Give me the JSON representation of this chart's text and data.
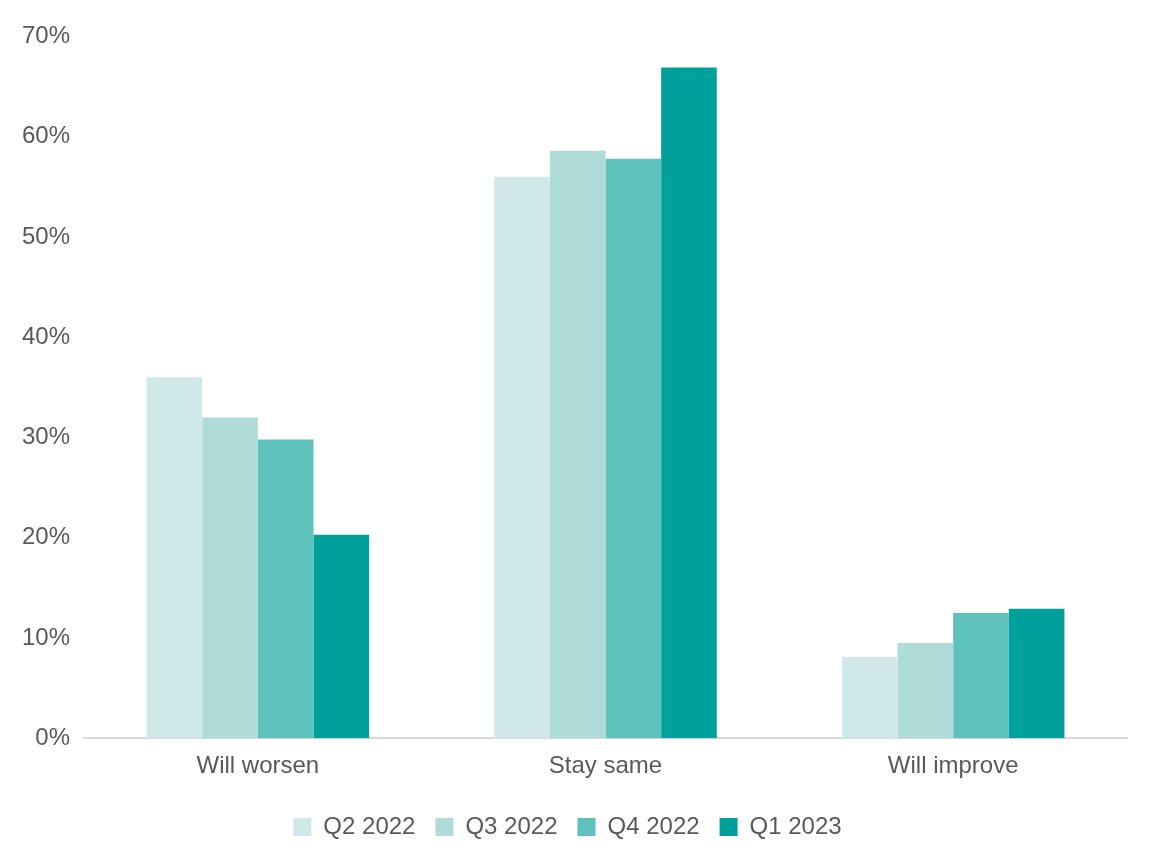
{
  "chart_data": {
    "type": "bar",
    "categories": [
      "Will worsen",
      "Stay same",
      "Will improve"
    ],
    "series": [
      {
        "name": "Q2 2022",
        "color": "#d0e9e8",
        "values": [
          36,
          56,
          8.1
        ]
      },
      {
        "name": "Q3 2022",
        "color": "#afdcd9",
        "values": [
          32,
          58.6,
          9.5
        ]
      },
      {
        "name": "Q4 2022",
        "color": "#5fc1bb",
        "values": [
          29.8,
          57.8,
          12.5
        ]
      },
      {
        "name": "Q1 2023",
        "color": "#00a19a",
        "values": [
          20.3,
          66.9,
          12.9
        ]
      }
    ],
    "ylim": [
      0,
      70
    ],
    "yticks": [
      {
        "value": 0,
        "label": "0%"
      },
      {
        "value": 10,
        "label": "10%"
      },
      {
        "value": 20,
        "label": "20%"
      },
      {
        "value": 30,
        "label": "30%"
      },
      {
        "value": 40,
        "label": "40%"
      },
      {
        "value": 50,
        "label": "50%"
      },
      {
        "value": 60,
        "label": "60%"
      },
      {
        "value": 70,
        "label": "70%"
      }
    ],
    "grid": false,
    "legend": "bottom"
  }
}
